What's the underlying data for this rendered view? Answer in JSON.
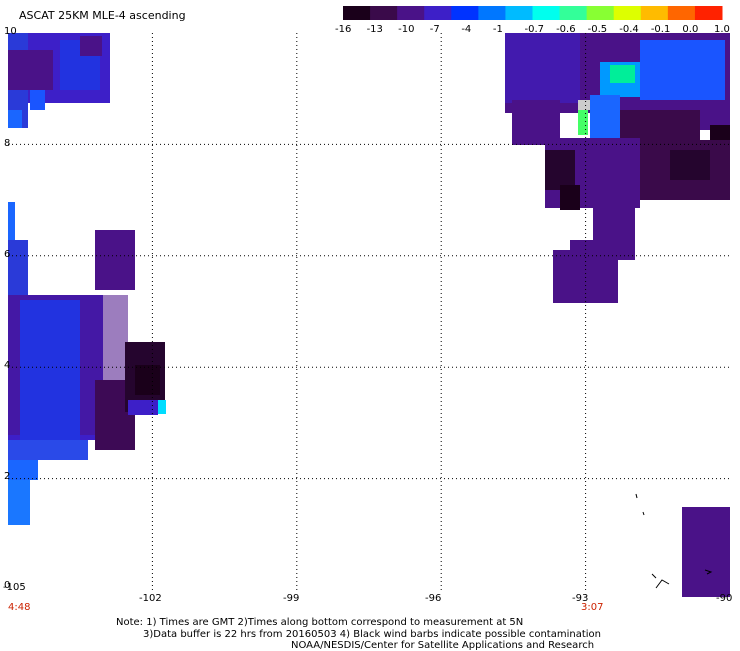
{
  "title": "ASCAT 25KM MLE-4 ascending",
  "colorbar": {
    "labels": [
      "-16",
      "-13",
      "-10",
      "-7",
      "-4",
      "-1",
      "-0.7",
      "-0.6",
      "-0.5",
      "-0.4",
      "-0.1",
      "0.0",
      "1.0"
    ],
    "colors": [
      "#1a001a",
      "#3a0a4a",
      "#4a1288",
      "#3d1fc8",
      "#0033ff",
      "#0077ff",
      "#00bbff",
      "#00ffee",
      "#33ff99",
      "#88ff33",
      "#ddff00",
      "#ffbb00",
      "#ff6600",
      "#ff2200"
    ]
  },
  "map": {
    "x_ticks": [
      "-105",
      "-102",
      "-99",
      "-96",
      "-93",
      "-90"
    ],
    "y_ticks": [
      "10",
      "8",
      "6",
      "4",
      "2",
      "0"
    ],
    "x_range": [
      -105,
      -90
    ],
    "y_range": [
      0,
      10
    ],
    "start_time": "4:48",
    "end_time": "3:07"
  },
  "notes": {
    "line1": "Note: 1) Times are GMT 2)Times along bottom correspond to measurement at 5N",
    "line2": "3)Data buffer is 22 hrs from 20160503 4) Black wind barbs indicate possible contamination",
    "line3": "NOAA/NESDIS/Center for Satellite Applications and Research"
  }
}
